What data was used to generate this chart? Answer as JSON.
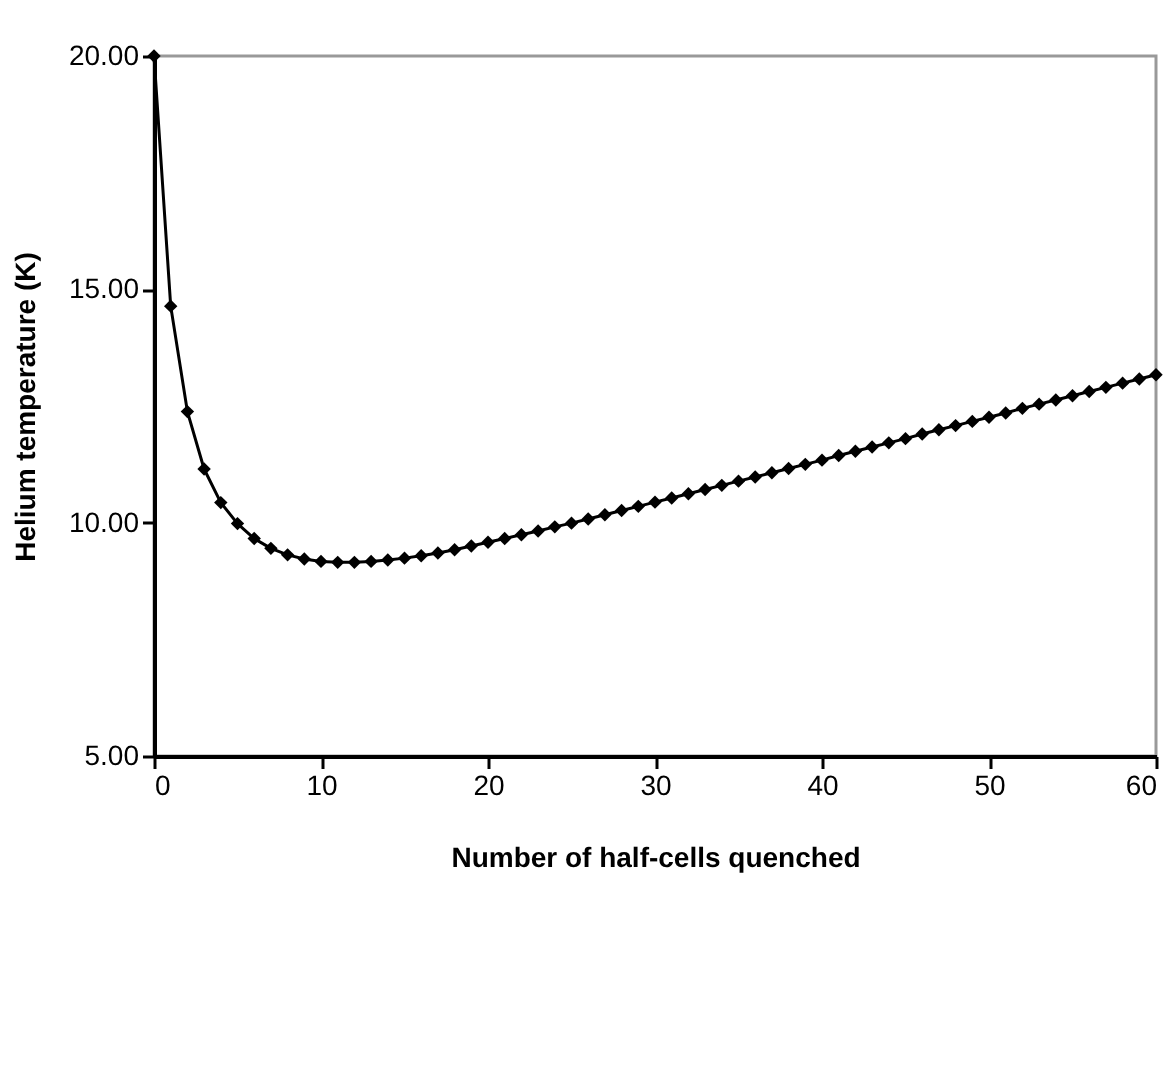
{
  "chart_data": {
    "type": "line",
    "xlabel": "Number of half-cells quenched",
    "ylabel": "Helium temperature (K)",
    "x": [
      0,
      1,
      2,
      3,
      4,
      5,
      6,
      7,
      8,
      9,
      10,
      11,
      12,
      13,
      14,
      15,
      16,
      17,
      18,
      19,
      20,
      21,
      22,
      23,
      24,
      25,
      26,
      27,
      28,
      29,
      30,
      31,
      32,
      33,
      34,
      35,
      36,
      37,
      38,
      39,
      40,
      41,
      42,
      43,
      44,
      45,
      46,
      47,
      48,
      49,
      50,
      51,
      52,
      53,
      54,
      55,
      56,
      57,
      58,
      59,
      60
    ],
    "series": [
      {
        "color": "#000000",
        "values": [
          20.0,
          14.64,
          12.38,
          11.15,
          10.43,
          9.98,
          9.66,
          9.45,
          9.31,
          9.22,
          9.17,
          9.15,
          9.15,
          9.17,
          9.2,
          9.24,
          9.29,
          9.35,
          9.42,
          9.5,
          9.58,
          9.66,
          9.74,
          9.82,
          9.91,
          9.99,
          10.08,
          10.17,
          10.26,
          10.35,
          10.44,
          10.53,
          10.62,
          10.71,
          10.8,
          10.89,
          10.98,
          11.07,
          11.16,
          11.25,
          11.34,
          11.44,
          11.53,
          11.62,
          11.71,
          11.8,
          11.9,
          11.99,
          12.08,
          12.17,
          12.26,
          12.35,
          12.45,
          12.54,
          12.63,
          12.72,
          12.81,
          12.9,
          12.99,
          13.08,
          13.17
        ]
      }
    ],
    "xlim": [
      0,
      60
    ],
    "xticks": [
      0,
      10,
      20,
      30,
      40,
      50,
      60
    ],
    "ylim": [
      5,
      20
    ],
    "yticks": [
      {
        "value": 5,
        "label": "5.00"
      },
      {
        "value": 10,
        "label": "10.00"
      },
      {
        "value": 15,
        "label": "15.00"
      },
      {
        "value": 20,
        "label": "20.00"
      }
    ],
    "marker": "diamond",
    "grid": false,
    "legend": false
  }
}
